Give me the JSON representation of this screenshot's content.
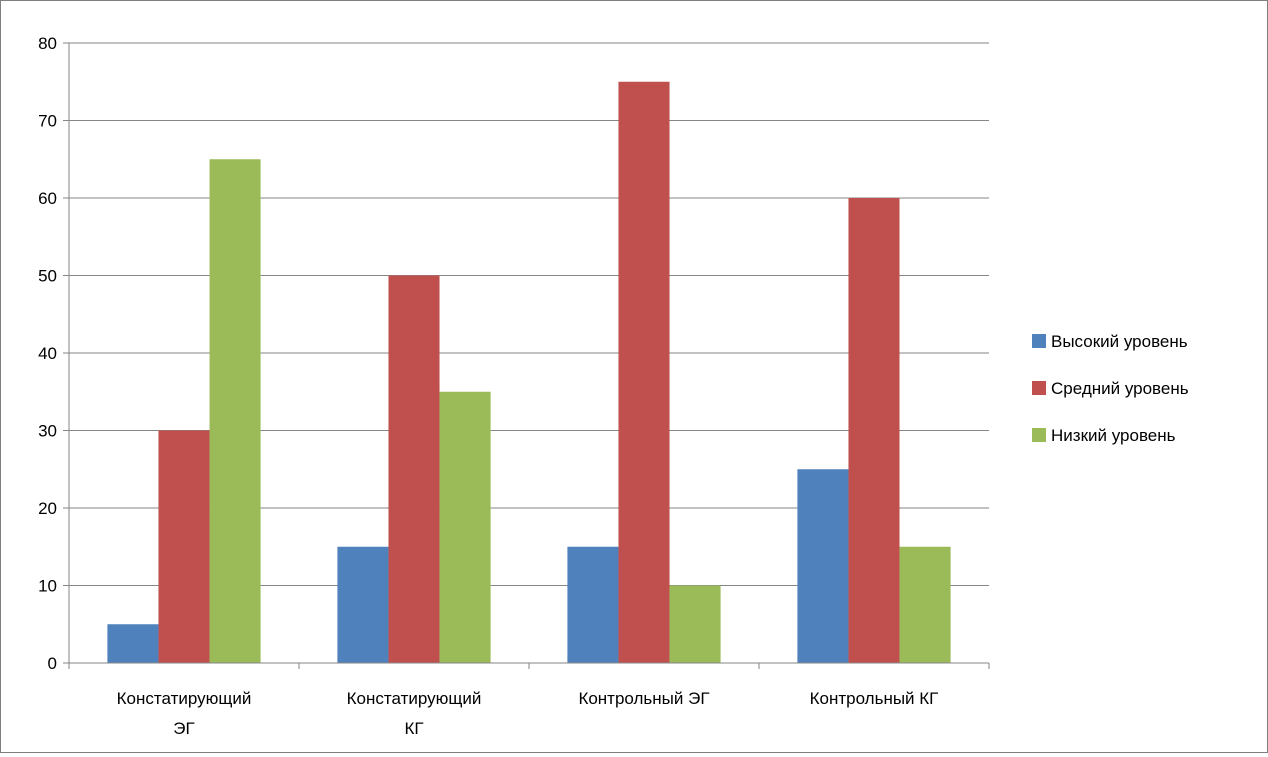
{
  "chart_data": {
    "type": "bar",
    "title": "",
    "xlabel": "",
    "ylabel": "",
    "ylim": [
      0,
      80
    ],
    "yticks": [
      0,
      10,
      20,
      30,
      40,
      50,
      60,
      70,
      80
    ],
    "grid": true,
    "legend_position": "right",
    "categories": [
      [
        "Констатирующий",
        "ЭГ"
      ],
      [
        "Констатирующий",
        "КГ"
      ],
      [
        "Контрольный ЭГ"
      ],
      [
        "Контрольный КГ"
      ]
    ],
    "series": [
      {
        "name": "Высокий уровень",
        "color": "#4F81BD",
        "values": [
          5,
          15,
          15,
          25
        ]
      },
      {
        "name": "Средний уровень",
        "color": "#C0504D",
        "values": [
          30,
          50,
          75,
          60
        ]
      },
      {
        "name": "Низкий уровень",
        "color": "#9BBB59",
        "values": [
          65,
          35,
          10,
          15
        ]
      }
    ]
  }
}
